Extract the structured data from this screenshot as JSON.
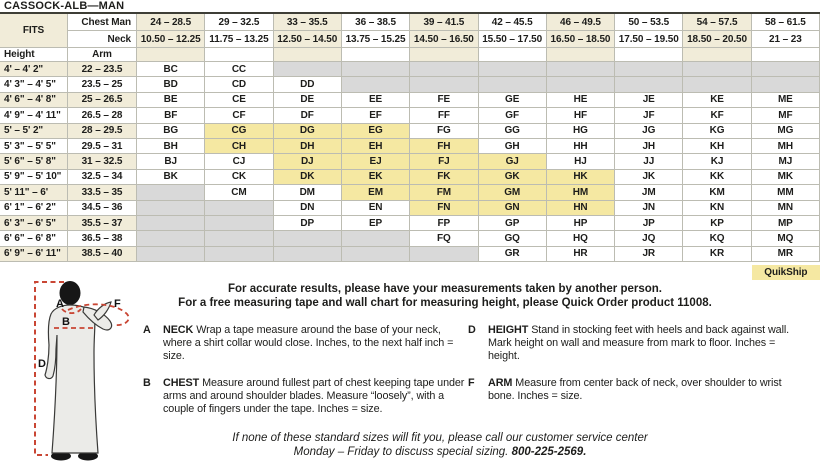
{
  "title": "CASSOCK-ALB—MAN",
  "table": {
    "fits_label": "FITS",
    "chest_label": "Chest Man",
    "neck_label": "Neck",
    "height_label": "Height",
    "arm_label": "Arm",
    "quikship_label": "QuikShip",
    "columns": [
      {
        "chest": "24 – 28.5",
        "neck": "10.50 – 12.25"
      },
      {
        "chest": "29 – 32.5",
        "neck": "11.75 – 13.25"
      },
      {
        "chest": "33 – 35.5",
        "neck": "12.50 – 14.50"
      },
      {
        "chest": "36 – 38.5",
        "neck": "13.75 – 15.25"
      },
      {
        "chest": "39 – 41.5",
        "neck": "14.50 – 16.50"
      },
      {
        "chest": "42 – 45.5",
        "neck": "15.50 – 17.50"
      },
      {
        "chest": "46 – 49.5",
        "neck": "16.50 – 18.50"
      },
      {
        "chest": "50 – 53.5",
        "neck": "17.50 – 19.50"
      },
      {
        "chest": "54 – 57.5",
        "neck": "18.50 – 20.50"
      },
      {
        "chest": "58 – 61.5",
        "neck": "21 – 23"
      }
    ],
    "rows": [
      {
        "height": "4' – 4' 2\"",
        "arm": "22 – 23.5",
        "codes": [
          "BC",
          "CC",
          "",
          "",
          "",
          "",
          "",
          "",
          "",
          ""
        ],
        "highlights": []
      },
      {
        "height": "4' 3\" – 4' 5\"",
        "arm": "23.5 – 25",
        "codes": [
          "BD",
          "CD",
          "DD",
          "",
          "",
          "",
          "",
          "",
          "",
          ""
        ],
        "highlights": []
      },
      {
        "height": "4' 6\" – 4' 8\"",
        "arm": "25 – 26.5",
        "codes": [
          "BE",
          "CE",
          "DE",
          "EE",
          "FE",
          "GE",
          "HE",
          "JE",
          "KE",
          "ME"
        ],
        "highlights": []
      },
      {
        "height": "4' 9\" – 4' 11\"",
        "arm": "26.5 – 28",
        "codes": [
          "BF",
          "CF",
          "DF",
          "EF",
          "FF",
          "GF",
          "HF",
          "JF",
          "KF",
          "MF"
        ],
        "highlights": []
      },
      {
        "height": "5' – 5' 2\"",
        "arm": "28 – 29.5",
        "codes": [
          "BG",
          "CG",
          "DG",
          "EG",
          "FG",
          "GG",
          "HG",
          "JG",
          "KG",
          "MG"
        ],
        "highlights": [
          1,
          2,
          3
        ]
      },
      {
        "height": "5' 3\" – 5' 5\"",
        "arm": "29.5 – 31",
        "codes": [
          "BH",
          "CH",
          "DH",
          "EH",
          "FH",
          "GH",
          "HH",
          "JH",
          "KH",
          "MH"
        ],
        "highlights": [
          1,
          2,
          3,
          4
        ]
      },
      {
        "height": "5' 6\" – 5' 8\"",
        "arm": "31 – 32.5",
        "codes": [
          "BJ",
          "CJ",
          "DJ",
          "EJ",
          "FJ",
          "GJ",
          "HJ",
          "JJ",
          "KJ",
          "MJ"
        ],
        "highlights": [
          2,
          3,
          4,
          5
        ]
      },
      {
        "height": "5' 9\" – 5' 10\"",
        "arm": "32.5 – 34",
        "codes": [
          "BK",
          "CK",
          "DK",
          "EK",
          "FK",
          "GK",
          "HK",
          "JK",
          "KK",
          "MK"
        ],
        "highlights": [
          2,
          3,
          4,
          5,
          6
        ]
      },
      {
        "height": "5' 11\" – 6'",
        "arm": "33.5 – 35",
        "codes": [
          "",
          "CM",
          "DM",
          "EM",
          "FM",
          "GM",
          "HM",
          "JM",
          "KM",
          "MM"
        ],
        "highlights": [
          3,
          4,
          5,
          6
        ]
      },
      {
        "height": "6' 1\" – 6' 2\"",
        "arm": "34.5 – 36",
        "codes": [
          "",
          "",
          "DN",
          "EN",
          "FN",
          "GN",
          "HN",
          "JN",
          "KN",
          "MN"
        ],
        "highlights": [
          4,
          5,
          6
        ]
      },
      {
        "height": "6' 3\" – 6' 5\"",
        "arm": "35.5 – 37",
        "codes": [
          "",
          "",
          "DP",
          "EP",
          "FP",
          "GP",
          "HP",
          "JP",
          "KP",
          "MP"
        ],
        "highlights": []
      },
      {
        "height": "6' 6\" – 6' 8\"",
        "arm": "36.5 – 38",
        "codes": [
          "",
          "",
          "",
          "",
          "FQ",
          "GQ",
          "HQ",
          "JQ",
          "KQ",
          "MQ"
        ],
        "highlights": []
      },
      {
        "height": "6' 9\" – 6' 11\"",
        "arm": "38.5 – 40",
        "codes": [
          "",
          "",
          "",
          "",
          "",
          "GR",
          "HR",
          "JR",
          "KR",
          "MR"
        ],
        "highlights": []
      }
    ]
  },
  "notes": {
    "line1": "For accurate results, please have your measurements taken by another person.",
    "line2": "For a free measuring tape and wall chart for measuring height, please Quick Order product 11008."
  },
  "instructions": [
    {
      "letter": "A",
      "term": "NECK",
      "text": "Wrap a tape measure around the base of your neck, where a shirt collar would close. Inches, to the next half inch = size."
    },
    {
      "letter": "B",
      "term": "CHEST",
      "text": "Measure around fullest part of chest keeping tape under arms and around shoulder blades. Measure “loosely”, with a couple of fingers under the tape. Inches = size."
    },
    {
      "letter": "D",
      "term": "HEIGHT",
      "text": "Stand in stocking feet with heels and back against wall. Mark height on wall and measure from mark to floor. Inches = height."
    },
    {
      "letter": "F",
      "term": "ARM",
      "text": "Measure from center back of neck, over shoulder to wrist bone. Inches = size."
    }
  ],
  "footer": {
    "line1": "If none of these standard sizes will fit you, please call our customer service center",
    "line2_prefix": "Monday – Friday to discuss special sizing. ",
    "phone": "800-225-2569."
  },
  "diagram": {
    "a": "A",
    "b": "B",
    "d": "D",
    "f": "F"
  },
  "colors": {
    "header_beige": "#f1ecd9",
    "highlight_yellow": "#f5e8a2",
    "unavailable_gray": "#d9d9d9",
    "grid_border": "#bcbcb2",
    "measure_red": "#c94634"
  }
}
